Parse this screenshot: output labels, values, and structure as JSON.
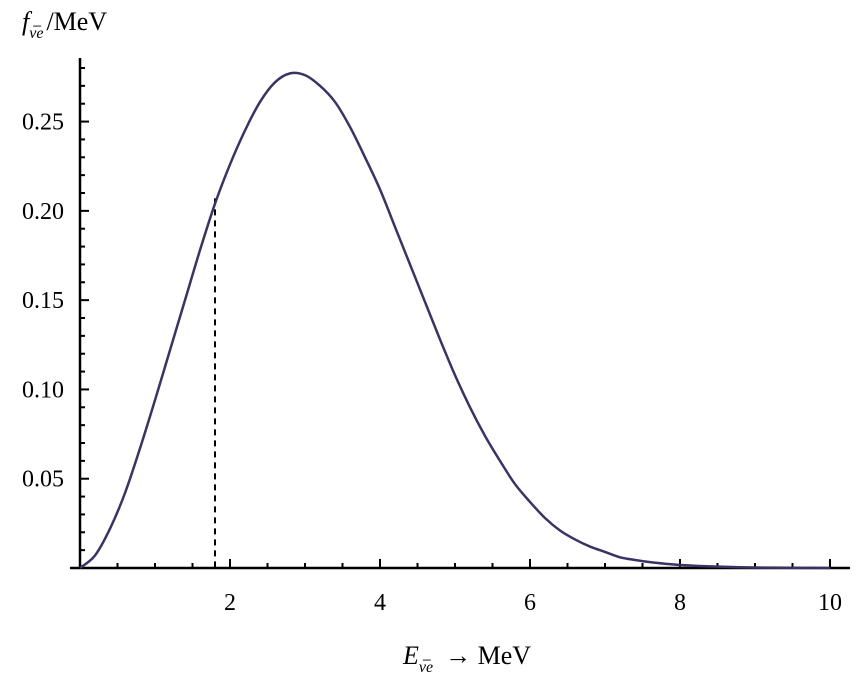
{
  "chart_data": {
    "type": "line",
    "ylabel": {
      "symbol": "f",
      "subscript": "ν̅e",
      "unit": "/MeV"
    },
    "xlabel": {
      "symbol": "E",
      "subscript": "ν̅e",
      "unit": "→ MeV"
    },
    "xlim": [
      0,
      10
    ],
    "ylim": [
      0,
      0.28
    ],
    "x_ticks": [
      2,
      4,
      6,
      8,
      10
    ],
    "y_ticks": [
      "0.05",
      "0.10",
      "0.15",
      "0.20",
      "0.25"
    ],
    "grid": false,
    "series": [
      {
        "color": "#3a3363",
        "x": [
          0,
          0.2,
          0.4,
          0.6,
          0.8,
          1.0,
          1.2,
          1.4,
          1.6,
          1.8,
          2.0,
          2.2,
          2.4,
          2.6,
          2.8,
          3.0,
          3.2,
          3.4,
          3.6,
          3.8,
          4.0,
          4.2,
          4.4,
          4.6,
          4.8,
          5.0,
          5.2,
          5.4,
          5.6,
          5.8,
          6.0,
          6.2,
          6.4,
          6.6,
          6.8,
          7.0,
          7.2,
          7.4,
          7.6,
          7.8,
          8.0,
          8.4,
          8.8,
          9.2,
          9.6,
          10.0
        ],
        "y": [
          0,
          0.007,
          0.022,
          0.042,
          0.067,
          0.094,
          0.122,
          0.15,
          0.178,
          0.204,
          0.226,
          0.245,
          0.261,
          0.272,
          0.277,
          0.276,
          0.27,
          0.261,
          0.247,
          0.23,
          0.212,
          0.191,
          0.17,
          0.149,
          0.128,
          0.108,
          0.09,
          0.074,
          0.06,
          0.047,
          0.037,
          0.028,
          0.021,
          0.016,
          0.012,
          0.009,
          0.006,
          0.0045,
          0.0033,
          0.0024,
          0.0017,
          0.0009,
          0.0004,
          0.0002,
          0.0001,
          0.0
        ]
      }
    ],
    "annotations": [
      {
        "type": "vertical-dashed-line",
        "x": 1.8,
        "y_top": 0.207
      }
    ]
  }
}
